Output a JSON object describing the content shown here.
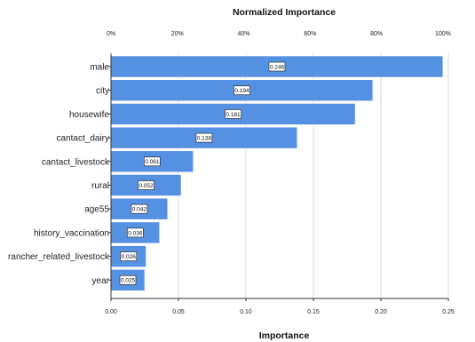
{
  "chart_data": {
    "type": "bar",
    "orientation": "horizontal",
    "title": "Normalized Importance",
    "xlabel": "Importance",
    "categories": [
      "male",
      "city",
      "housewife",
      "cantact_dairy",
      "cantact_livestock",
      "rural",
      "age55",
      "history_vaccination",
      "rancher_related_livestock",
      "year"
    ],
    "values": [
      0.246,
      0.194,
      0.181,
      0.138,
      0.061,
      0.052,
      0.042,
      0.036,
      0.026,
      0.025
    ],
    "value_labels": [
      "0.246",
      "0.194",
      "0.181",
      "0.138",
      "0.061",
      "0.052",
      "0.042",
      "0.036",
      "0.026",
      "0.025"
    ],
    "xlim": [
      0,
      0.25
    ],
    "x_ticks": [
      0,
      0.05,
      0.1,
      0.15,
      0.2,
      0.25
    ],
    "x_tick_labels": [
      "0.00",
      "0.05",
      "0.10",
      "0.15",
      "0.20",
      "0.25"
    ],
    "top_axis_ticks_pct": [
      0,
      20,
      40,
      60,
      80,
      100
    ],
    "top_axis_tick_labels": [
      "0%",
      "20%",
      "40%",
      "60%",
      "80%",
      "100%"
    ],
    "bar_color": "#5591e2",
    "grid": "vertical",
    "legend": "none"
  }
}
